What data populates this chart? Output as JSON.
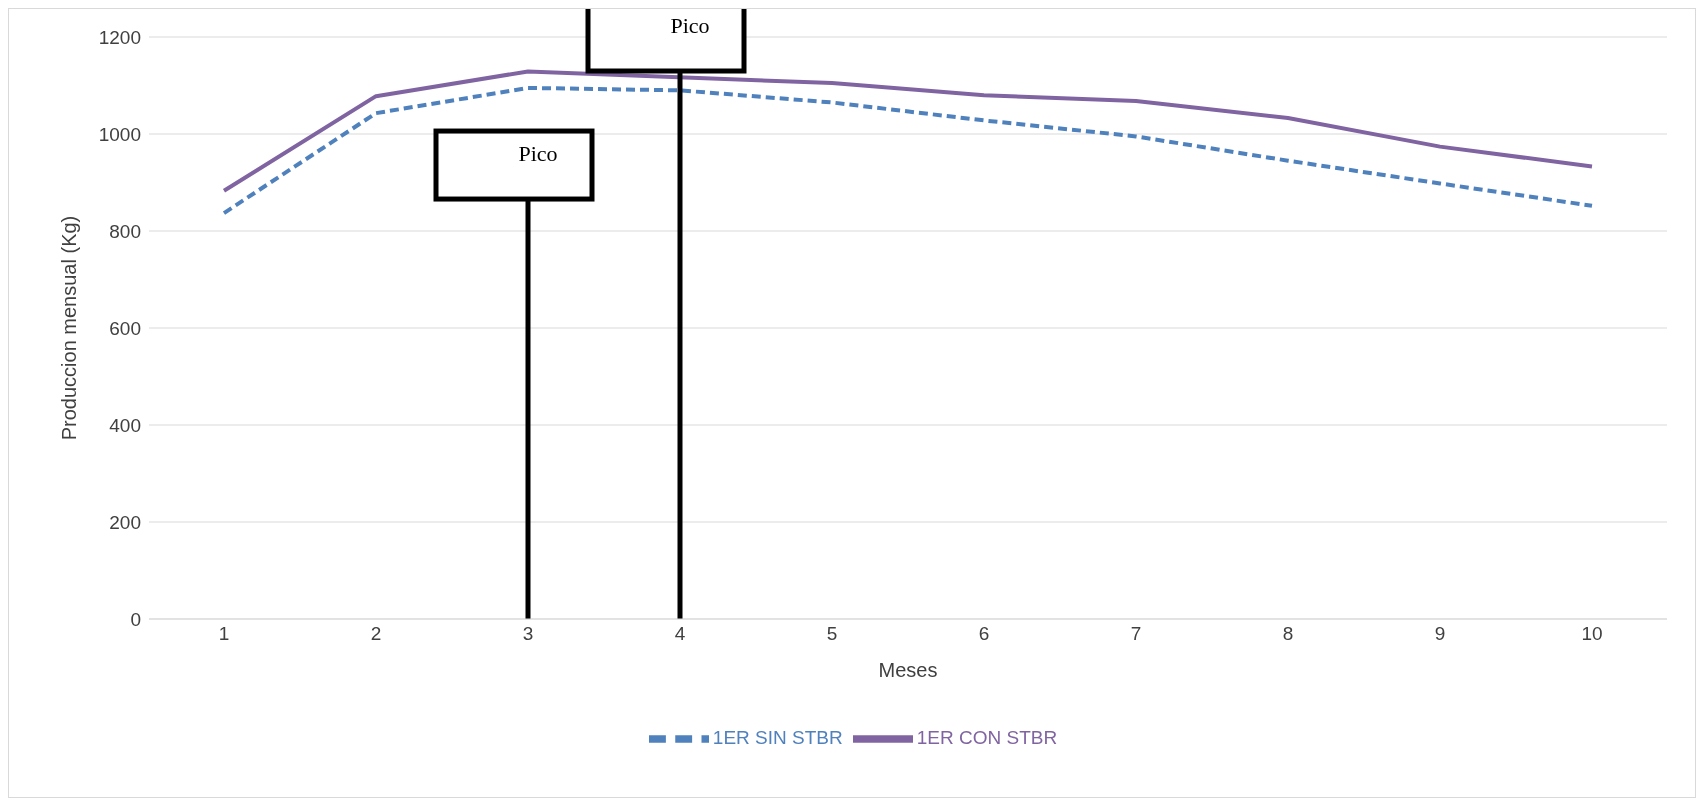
{
  "chart_data": {
    "type": "line",
    "xlabel": "Meses",
    "ylabel": "Produccion mensual (Kg)",
    "categories": [
      "1",
      "2",
      "3",
      "4",
      "5",
      "6",
      "7",
      "8",
      "9",
      "10"
    ],
    "series": [
      {
        "name": "1ER SIN STBR",
        "color": "#4f81bd",
        "line_style": "dashed",
        "values": [
          837,
          1043,
          1095,
          1090,
          1065,
          1028,
          995,
          945,
          898,
          852
        ]
      },
      {
        "name": "1ER CON STBR",
        "color": "#8064a2",
        "line_style": "solid",
        "values": [
          883,
          1078,
          1129,
          null,
          1105,
          1080,
          1068,
          1033,
          974,
          933
        ]
      }
    ],
    "ylim": [
      0,
      1200
    ],
    "yticks": [
      0,
      200,
      400,
      600,
      800,
      1000,
      1200
    ],
    "grid": "y",
    "legend": "bottom",
    "marker": "none",
    "ref_lines": [
      {
        "axis": "x",
        "value": "3",
        "label": "Pico",
        "color": "#000000"
      },
      {
        "axis": "x",
        "value": "4",
        "label": "Pico",
        "color": "#000000"
      }
    ]
  }
}
